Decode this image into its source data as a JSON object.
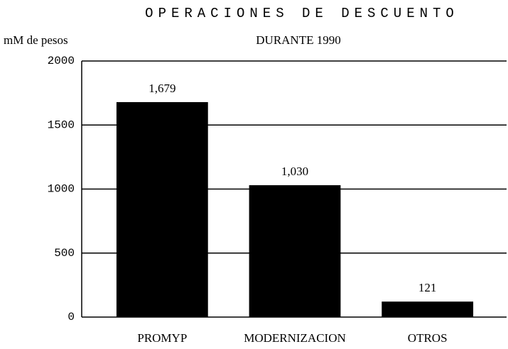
{
  "chart_data": {
    "type": "bar",
    "title": "OPERACIONES DE DESCUENTO",
    "subtitle": "DURANTE 1990",
    "y_label": "mM de pesos",
    "categories": [
      "PROMYP",
      "MODERNIZACION",
      "OTROS"
    ],
    "values": [
      1679,
      1030,
      121
    ],
    "value_labels": [
      "1,679",
      "1,030",
      "121"
    ],
    "color": "#000000",
    "ylim": [
      0,
      2000
    ],
    "yticks": [
      0,
      500,
      1000,
      1500,
      2000
    ],
    "grid": true
  }
}
